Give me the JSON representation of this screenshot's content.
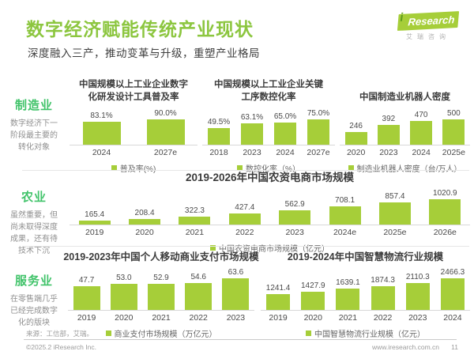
{
  "page": {
    "title": "数字经济赋能传统产业现状",
    "subtitle": "深度融入三产，推动变革与升级，重塑产业格局",
    "logo": {
      "i": "i",
      "name": "Research",
      "cn": "艾瑞咨询"
    },
    "footer": {
      "source": "来源：工信部，艾瑞。",
      "copyright": "©2025.2 iResearch Inc.",
      "website": "www.iresearch.com.cn",
      "page_number": "11"
    }
  },
  "colors": {
    "green_title": "#8cc63f",
    "green_bar": "#a6ce39",
    "green_side": "#41c36a"
  },
  "sidebar": {
    "items": [
      {
        "label": "制造业",
        "desc": "数字经济下一阶段最主要的转化对象"
      },
      {
        "label": "农业",
        "desc": "虽然重要，但尚未取得深度成果，还有待技术下沉"
      },
      {
        "label": "服务业",
        "desc": "在零售端几乎已经完成数字化的版块"
      }
    ]
  },
  "chart_data": [
    {
      "type": "bar",
      "title": "中国规模以上工业企业数字化研发设计工具普及率",
      "categories": [
        "2024",
        "2027e"
      ],
      "values": [
        83.1,
        90.0
      ],
      "labels": [
        "83.1%",
        "90.0%"
      ],
      "legend": "普及率(%)",
      "ylabel": "普及率(%)",
      "ylim": [
        0,
        90
      ],
      "grid": false,
      "legend_position": "bottom"
    },
    {
      "type": "bar",
      "title": "中国规模以上工业企业关键工序数控化率",
      "categories": [
        "2018",
        "2023",
        "2024",
        "2027e"
      ],
      "values": [
        49.5,
        63.1,
        65.0,
        75.0
      ],
      "labels": [
        "49.5%",
        "63.1%",
        "65.0%",
        "75.0%"
      ],
      "legend": "数控化率（%）",
      "ylabel": "数控化率（%）",
      "ylim": [
        0,
        75
      ],
      "grid": false,
      "legend_position": "bottom"
    },
    {
      "type": "bar",
      "title": "中国制造业机器人密度",
      "categories": [
        "2020",
        "2023",
        "2024",
        "2025e"
      ],
      "values": [
        246,
        392,
        470,
        500
      ],
      "labels": [
        "246",
        "392",
        "470",
        "500"
      ],
      "legend": "制造业机器人密度（台/万人）",
      "ylabel": "制造业机器人密度（台/万人）",
      "ylim": [
        0,
        500
      ],
      "grid": false,
      "legend_position": "bottom"
    },
    {
      "type": "bar",
      "title": "2019-2026年中国农资电商市场规模",
      "categories": [
        "2019",
        "2020",
        "2021",
        "2022",
        "2023",
        "2024e",
        "2025e",
        "2026e"
      ],
      "values": [
        165.4,
        208.4,
        322.3,
        427.4,
        562.9,
        708.1,
        857.4,
        1020.9
      ],
      "labels": [
        "165.4",
        "208.4",
        "322.3",
        "427.4",
        "562.9",
        "708.1",
        "857.4",
        "1020.9"
      ],
      "legend": "中国农资电商市场规模（亿元）",
      "ylabel": "市场规模（亿元）",
      "ylim": [
        0,
        1100
      ],
      "grid": false,
      "legend_position": "bottom"
    },
    {
      "type": "bar",
      "title": "2019-2023年中国个人移动商业支付市场规模",
      "categories": [
        "2019",
        "2020",
        "2021",
        "2022",
        "2023"
      ],
      "values": [
        47.7,
        53.0,
        52.9,
        54.6,
        63.6
      ],
      "labels": [
        "47.7",
        "53.0",
        "52.9",
        "54.6",
        "63.6"
      ],
      "legend": "商业支付市场规模（万亿元）",
      "ylabel": "市场规模（万亿元）",
      "ylim": [
        0,
        70
      ],
      "grid": false,
      "legend_position": "bottom"
    },
    {
      "type": "bar",
      "title": "2019-2024年中国智慧物流行业规模",
      "categories": [
        "2019",
        "2020",
        "2021",
        "2022",
        "2023",
        "2024"
      ],
      "values": [
        1241.4,
        1427.9,
        1639.1,
        1874.3,
        2110.3,
        2466.3
      ],
      "labels": [
        "1241.4",
        "1427.9",
        "1639.1",
        "1874.3",
        "2110.3",
        "2466.3"
      ],
      "legend": "中国智慧物流行业规模（亿元）",
      "ylabel": "行业规模（亿元）",
      "ylim": [
        0,
        2600
      ],
      "grid": false,
      "legend_position": "bottom"
    }
  ]
}
